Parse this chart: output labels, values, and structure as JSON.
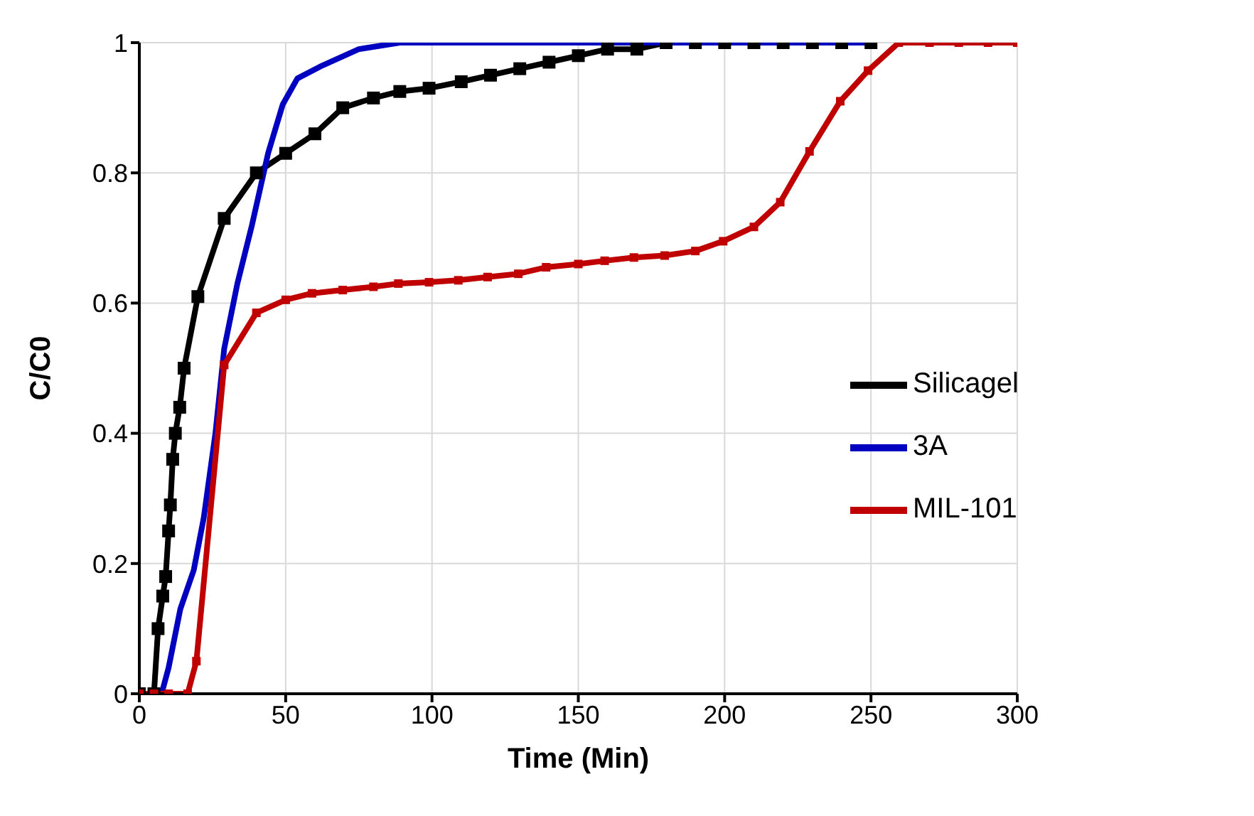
{
  "chart_data": {
    "type": "line",
    "xlabel": "Time (Min)",
    "ylabel": "C/C0",
    "xlim": [
      0,
      300
    ],
    "xticks": [
      0,
      50,
      100,
      150,
      200,
      250,
      300
    ],
    "ylim": [
      0,
      1
    ],
    "yticks": [
      0,
      0.2,
      0.4,
      0.6,
      0.8,
      1
    ],
    "grid": true,
    "legend": "right",
    "line_style": "solid",
    "series": [
      {
        "name": "Silicagel",
        "color": "#000000",
        "marker": "square",
        "x": [
          0,
          5,
          6.4,
          8,
          9,
          10,
          10.6,
          11.4,
          12.3,
          13.8,
          15.3,
          20,
          29,
          40,
          50,
          60,
          69.5,
          80,
          89,
          99,
          110,
          120,
          130,
          140,
          150,
          160,
          170,
          180,
          190,
          200,
          210,
          220,
          230,
          240,
          250
        ],
        "values": [
          0,
          0,
          0.1,
          0.15,
          0.18,
          0.25,
          0.29,
          0.36,
          0.4,
          0.44,
          0.5,
          0.61,
          0.73,
          0.8,
          0.83,
          0.86,
          0.9,
          0.915,
          0.925,
          0.93,
          0.94,
          0.95,
          0.96,
          0.97,
          0.98,
          0.99,
          0.99,
          1,
          1,
          1,
          1,
          1,
          1,
          1,
          1
        ]
      },
      {
        "name": "3A",
        "color": "#0000c0",
        "marker": "none",
        "x": [
          0,
          7.6,
          10,
          14,
          18.6,
          22,
          26,
          29,
          33.5,
          38.5,
          44,
          49,
          54,
          62.6,
          75,
          89,
          100,
          150,
          200,
          250
        ],
        "values": [
          0,
          0,
          0.04,
          0.13,
          0.19,
          0.27,
          0.4,
          0.53,
          0.63,
          0.72,
          0.83,
          0.905,
          0.945,
          0.965,
          0.99,
          1,
          1,
          1,
          1,
          1
        ]
      },
      {
        "name": "MIL-101",
        "color": "#c00000",
        "marker": "square",
        "x": [
          0,
          5,
          10,
          16.5,
          19.5,
          29,
          40,
          50,
          59,
          69.5,
          80,
          88.5,
          99,
          109,
          119,
          129.5,
          139,
          150,
          159,
          169,
          179.5,
          190,
          199.5,
          210,
          219,
          229,
          239.5,
          249,
          259.5,
          270,
          280,
          290,
          300
        ],
        "values": [
          0,
          0,
          0,
          0,
          0.05,
          0.505,
          0.585,
          0.605,
          0.615,
          0.62,
          0.625,
          0.63,
          0.632,
          0.635,
          0.64,
          0.645,
          0.655,
          0.66,
          0.665,
          0.67,
          0.673,
          0.68,
          0.695,
          0.717,
          0.755,
          0.833,
          0.91,
          0.957,
          1,
          1,
          1,
          1,
          1
        ]
      }
    ]
  }
}
